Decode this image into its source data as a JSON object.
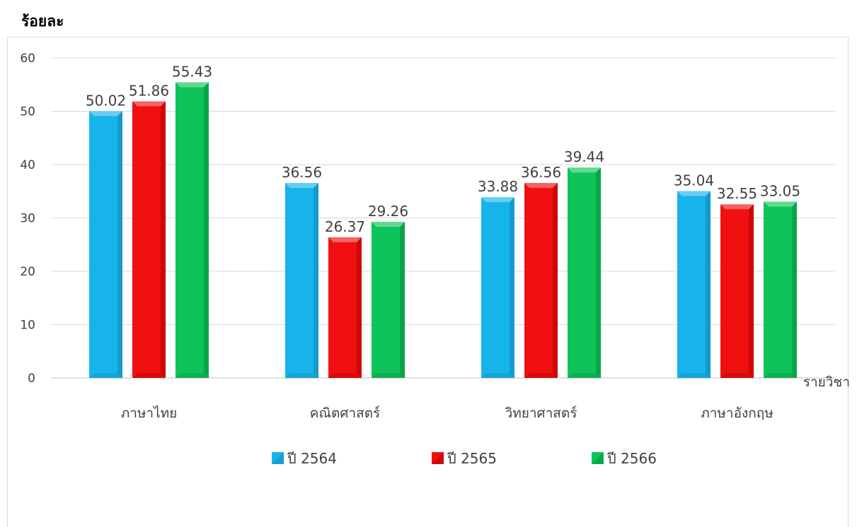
{
  "chart_data": {
    "type": "bar",
    "ylabel": "ร้อยละ",
    "xlabel": "รายวิชา",
    "categories": [
      "ภาษาไทย",
      "คณิตศาสตร์",
      "วิทยาศาสตร์",
      "ภาษาอังกฤษ"
    ],
    "series": [
      {
        "name": "ปี 2564",
        "values": [
          50.02,
          36.56,
          33.88,
          35.04
        ],
        "color": "#17b4ec",
        "dark": "#0e86b4"
      },
      {
        "name": "ปี 2565",
        "values": [
          51.86,
          26.37,
          36.56,
          32.55
        ],
        "color": "#f01010",
        "dark": "#b00000"
      },
      {
        "name": "ปี 2566",
        "values": [
          55.43,
          29.26,
          39.44,
          33.05
        ],
        "color": "#0ec35a",
        "dark": "#078a3c"
      }
    ],
    "value_labels": [
      [
        "50.02",
        "36.56",
        "33.88",
        "35.04"
      ],
      [
        "51.86",
        "26.37",
        "36.56",
        "32.55"
      ],
      [
        "55.43",
        "29.26",
        "39.44",
        "33.05"
      ]
    ],
    "ylim": [
      0,
      60
    ],
    "yticks": [
      0,
      10,
      20,
      30,
      40,
      50,
      60
    ],
    "grid": true,
    "legend": "bottom"
  }
}
